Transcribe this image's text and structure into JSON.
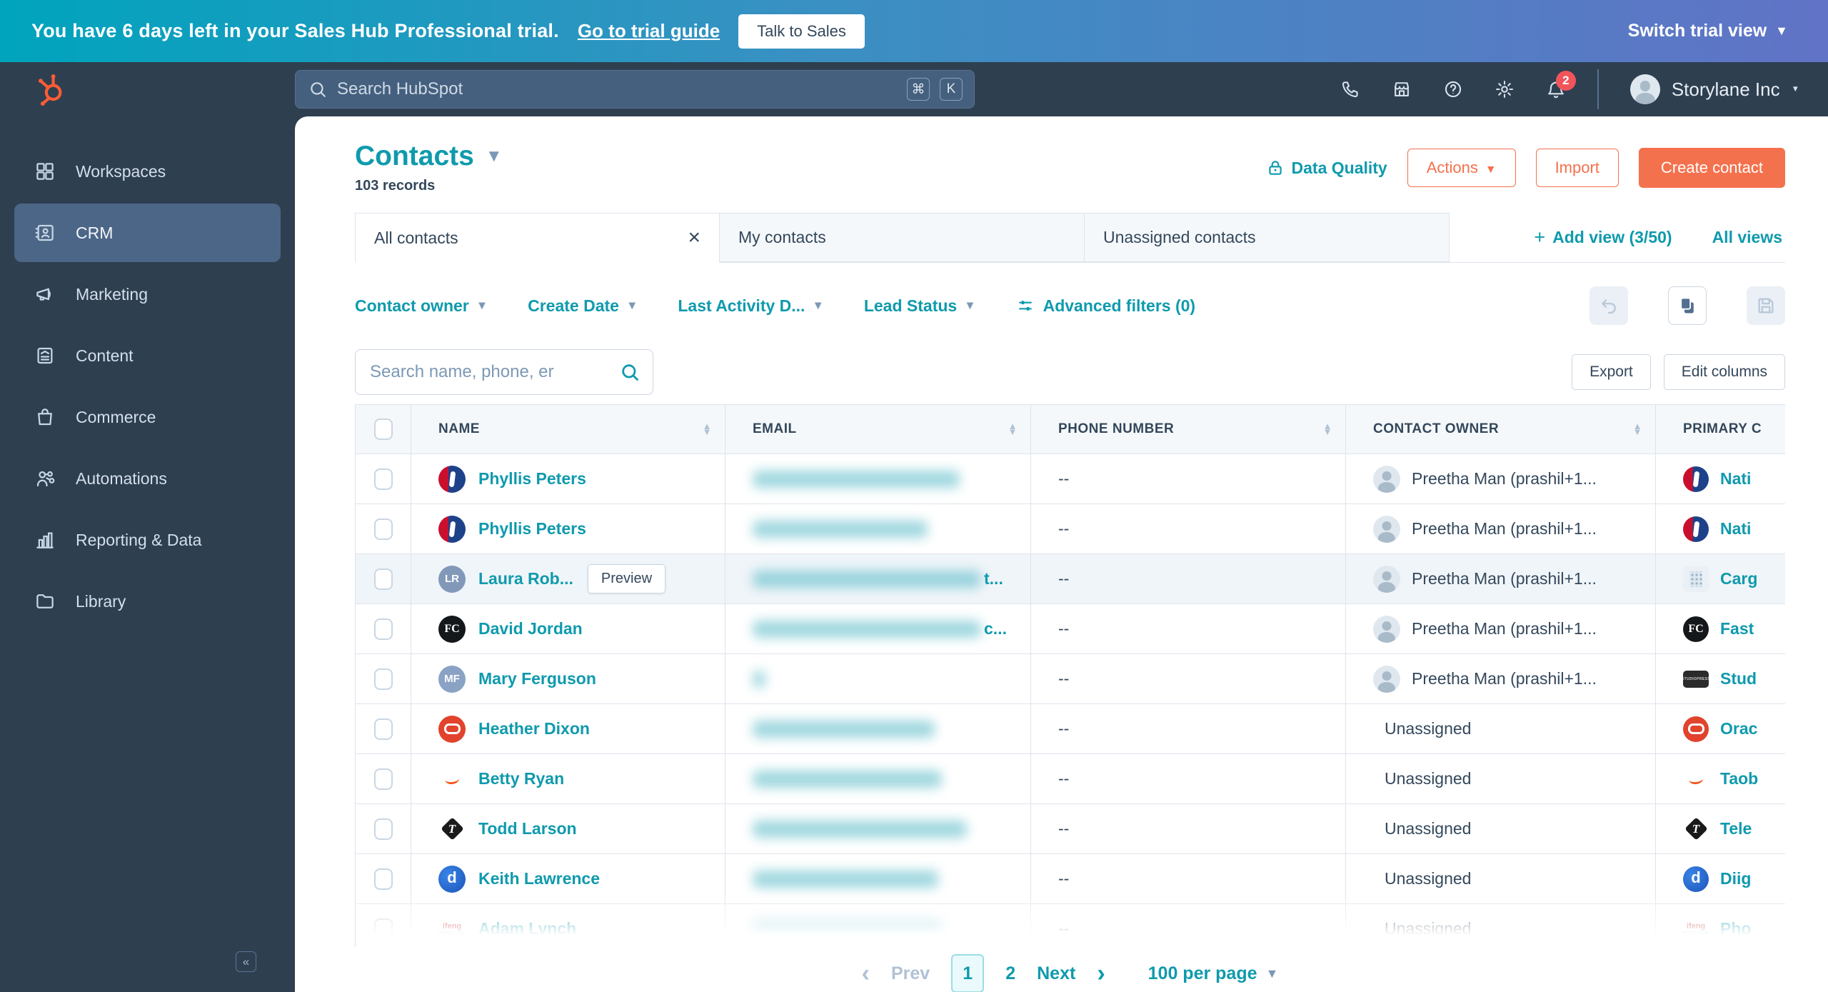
{
  "colors": {
    "accent_teal": "#0f9aad",
    "coral": "#f4714d",
    "navy": "#2e3f50",
    "banner_gradient": [
      "#00a4bd",
      "#6173c6"
    ],
    "notification_red": "#f2545b"
  },
  "banner": {
    "message": "You have 6 days left in your Sales Hub Professional trial.",
    "trial_guide_link": "Go to trial guide",
    "talk_to_sales": "Talk to Sales",
    "switch_trial_view": "Switch trial view"
  },
  "topnav": {
    "search_placeholder": "Search HubSpot",
    "shortcut_keys": [
      "⌘",
      "K"
    ],
    "notification_count": "2",
    "account_name": "Storylane Inc",
    "icons": [
      "phone-icon",
      "marketplace-icon",
      "help-icon",
      "settings-icon",
      "notifications-icon"
    ]
  },
  "sidebar": {
    "items": [
      {
        "label": "Workspaces",
        "icon": "grid-icon"
      },
      {
        "label": "CRM",
        "icon": "crm-icon",
        "active": true
      },
      {
        "label": "Marketing",
        "icon": "megaphone-icon"
      },
      {
        "label": "Content",
        "icon": "document-icon"
      },
      {
        "label": "Commerce",
        "icon": "commerce-icon"
      },
      {
        "label": "Automations",
        "icon": "automations-icon"
      },
      {
        "label": "Reporting & Data",
        "icon": "bar-chart-icon"
      },
      {
        "label": "Library",
        "icon": "folder-icon"
      }
    ]
  },
  "header": {
    "title": "Contacts",
    "record_count": "103 records",
    "data_quality": "Data Quality",
    "actions_label": "Actions",
    "import_label": "Import",
    "create_contact_label": "Create contact"
  },
  "views": {
    "tabs": [
      {
        "label": "All contacts",
        "active": true
      },
      {
        "label": "My contacts",
        "active": false
      },
      {
        "label": "Unassigned contacts",
        "active": false
      }
    ],
    "add_view": "Add view (3/50)",
    "all_views": "All views"
  },
  "filters": {
    "dropdowns": [
      "Contact owner",
      "Create Date",
      "Last Activity D...",
      "Lead Status"
    ],
    "advanced": "Advanced filters (0)"
  },
  "toolbar": {
    "search_placeholder": "Search name, phone, er",
    "export_label": "Export",
    "edit_columns_label": "Edit columns"
  },
  "table": {
    "columns": [
      "NAME",
      "EMAIL",
      "PHONE NUMBER",
      "CONTACT OWNER",
      "PRIMARY C"
    ],
    "preview_label": "Preview",
    "rows": [
      {
        "avatar": "nba",
        "name": "Phyllis Peters",
        "preview": false,
        "email_w": 290,
        "email_tail": "",
        "phone": "--",
        "owner": "Preetha Man (prashil+1...",
        "owner_avatar": true,
        "logo": "nba",
        "company": "Nati",
        "highlighted": false
      },
      {
        "avatar": "nba",
        "name": "Phyllis Peters",
        "preview": false,
        "email_w": 245,
        "email_tail": "",
        "phone": "--",
        "owner": "Preetha Man (prashil+1...",
        "owner_avatar": true,
        "logo": "nba",
        "company": "Nati",
        "highlighted": false
      },
      {
        "avatar": "lr",
        "name": "Laura Rob...",
        "preview": true,
        "email_w": 320,
        "email_tail": "t...",
        "phone": "--",
        "owner": "Preetha Man (prashil+1...",
        "owner_avatar": true,
        "logo": "building",
        "company": "Carg",
        "highlighted": true
      },
      {
        "avatar": "fc",
        "name": "David Jordan",
        "preview": false,
        "email_w": 320,
        "email_tail": "c...",
        "phone": "--",
        "owner": "Preetha Man (prashil+1...",
        "owner_avatar": true,
        "logo": "fc",
        "company": "Fast",
        "highlighted": false
      },
      {
        "avatar": "mf",
        "name": "Mary Ferguson",
        "preview": false,
        "email_w": 18,
        "email_tail": "",
        "phone": "--",
        "owner": "Preetha Man (prashil+1...",
        "owner_avatar": true,
        "logo": "studiopress",
        "company": "Stud",
        "highlighted": false
      },
      {
        "avatar": "oracle",
        "name": "Heather Dixon",
        "preview": false,
        "email_w": 255,
        "email_tail": "",
        "phone": "--",
        "owner": "Unassigned",
        "owner_avatar": false,
        "logo": "oracle",
        "company": "Orac",
        "highlighted": false
      },
      {
        "avatar": "taobao",
        "name": "Betty Ryan",
        "preview": false,
        "email_w": 265,
        "email_tail": "",
        "phone": "--",
        "owner": "Unassigned",
        "owner_avatar": false,
        "logo": "taobao",
        "company": "Taob",
        "highlighted": false
      },
      {
        "avatar": "telegraph",
        "name": "Todd Larson",
        "preview": false,
        "email_w": 300,
        "email_tail": "",
        "phone": "--",
        "owner": "Unassigned",
        "owner_avatar": false,
        "logo": "telegraph",
        "company": "Tele",
        "highlighted": false
      },
      {
        "avatar": "diigo",
        "name": "Keith Lawrence",
        "preview": false,
        "email_w": 260,
        "email_tail": "",
        "phone": "--",
        "owner": "Unassigned",
        "owner_avatar": false,
        "logo": "diigo",
        "company": "Diig",
        "highlighted": false
      },
      {
        "avatar": "ifeng",
        "name": "Adam Lynch",
        "preview": false,
        "email_w": 265,
        "email_tail": "",
        "phone": "--",
        "owner": "Unassigned",
        "owner_avatar": false,
        "logo": "ifeng",
        "company": "Pho",
        "highlighted": false
      }
    ]
  },
  "pagination": {
    "prev": "Prev",
    "page_current": "1",
    "page_next": "2",
    "next": "Next",
    "per_page": "100 per page"
  }
}
